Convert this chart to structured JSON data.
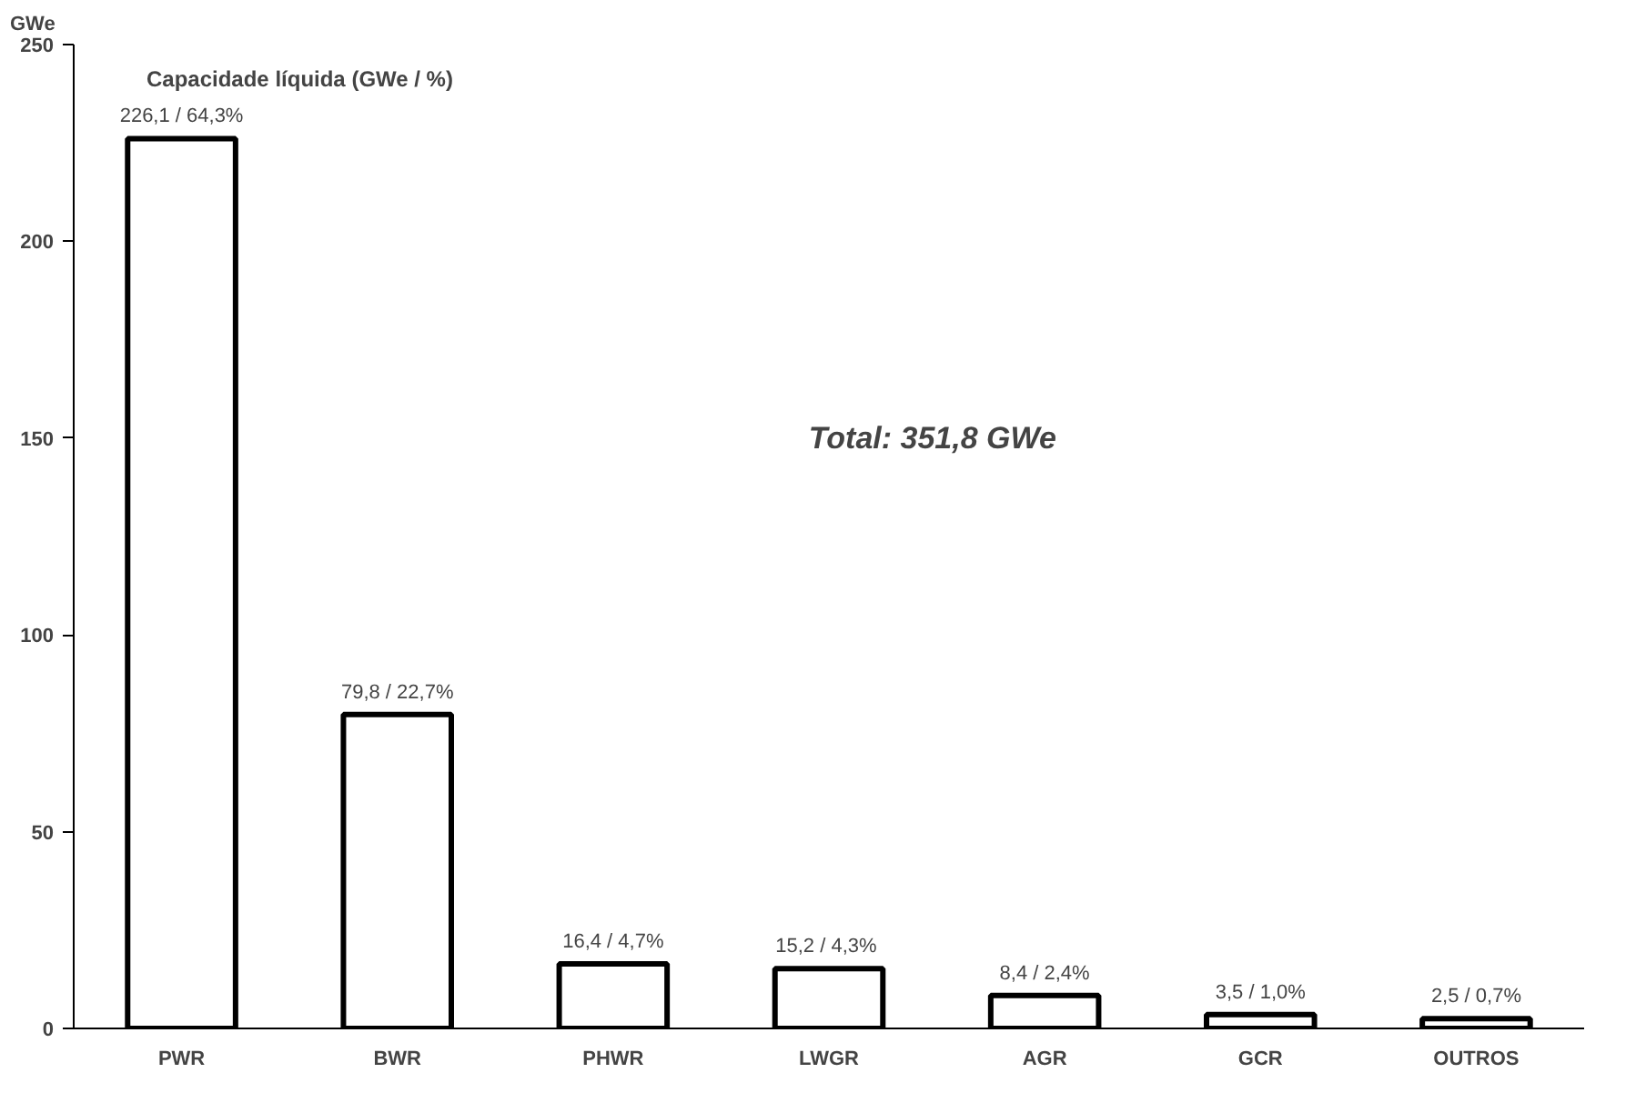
{
  "chart_data": {
    "type": "bar",
    "title": "Capacidade líquida (GWe / %)",
    "ylabel": "GWe",
    "categories": [
      "PWR",
      "BWR",
      "PHWR",
      "LWGR",
      "AGR",
      "GCR",
      "OUTROS"
    ],
    "values": [
      226.1,
      79.8,
      16.4,
      15.2,
      8.4,
      3.5,
      2.5
    ],
    "value_labels": [
      "226,1 / 64,3%",
      "79,8 / 22,7%",
      "16,4 / 4,7%",
      "15,2  / 4,3%",
      "8,4 / 2,4%",
      "3,5 / 1,0%",
      "2,5 / 0,7%"
    ],
    "color": "#ffffff",
    "ylim": [
      0,
      250
    ],
    "yticks": [
      0,
      50,
      100,
      150,
      200,
      250
    ],
    "grid": false,
    "annotations": [
      "Total:  351,8 GWe"
    ]
  }
}
